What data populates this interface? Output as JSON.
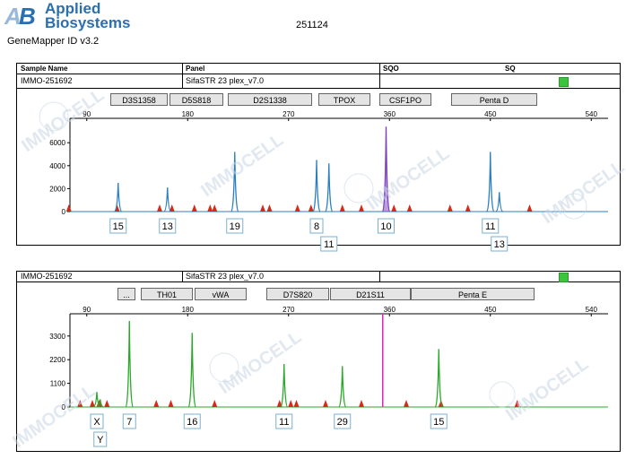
{
  "header": {
    "brand_line1": "Applied",
    "brand_line2": "Biosystems",
    "app_name": "GeneMapper ID v3.2",
    "run_id": "251124",
    "watermark": "IMMOCELL"
  },
  "table": {
    "col_sample": "Sample Name",
    "col_panel": "Panel",
    "col_sqo": "SQO",
    "col_sq": "SQ",
    "sample_name": "IMMO-251692",
    "panel": "SifaSTR 23 plex_v7.0"
  },
  "colors": {
    "blue_dye": "#2a7fc0",
    "green_dye": "#2aa82a",
    "purple_dye": "#7b3fc0",
    "magenta_dye": "#e020c0",
    "size_std": "#d42a1a",
    "status_ok": "#3cc43c"
  },
  "chart_data": [
    {
      "type": "line",
      "dye": "blue",
      "title": "",
      "x_ticks": [
        90,
        180,
        270,
        360,
        450,
        540
      ],
      "y_ticks": [
        0,
        2000,
        4000,
        6000
      ],
      "xlim": [
        75,
        555
      ],
      "ylim": [
        0,
        7500
      ],
      "markers": [
        "D3S1358",
        "D5S818",
        "D2S1338",
        "TPOX",
        "CSF1PO",
        "Penta D"
      ],
      "peaks": [
        {
          "x": 118,
          "y": 2500,
          "label": "15"
        },
        {
          "x": 162,
          "y": 2100,
          "label": "13"
        },
        {
          "x": 222,
          "y": 5200,
          "label": "19"
        },
        {
          "x": 295,
          "y": 4500,
          "label": "8"
        },
        {
          "x": 306,
          "y": 4200,
          "label": "11"
        },
        {
          "x": 357,
          "y": 7400,
          "label": "10",
          "pull_up": true
        },
        {
          "x": 450,
          "y": 5200,
          "label": "11"
        },
        {
          "x": 458,
          "y": 1700,
          "label": "13"
        }
      ],
      "size_standard_x": [
        74,
        117,
        155,
        166,
        186,
        200,
        204,
        247,
        253,
        278,
        290,
        318,
        335,
        364,
        378,
        414,
        430,
        485
      ]
    },
    {
      "type": "line",
      "dye": "green",
      "title": "",
      "x_ticks": [
        90,
        180,
        270,
        360,
        450,
        540
      ],
      "y_ticks": [
        0,
        1100,
        2200,
        3300
      ],
      "xlim": [
        75,
        555
      ],
      "ylim": [
        0,
        4000
      ],
      "markers": [
        "...",
        "TH01",
        "vWA",
        "D7S820",
        "D21S11",
        "Penta E"
      ],
      "peaks": [
        {
          "x": 99,
          "y": 700,
          "label": "X"
        },
        {
          "x": 102,
          "y": 350,
          "label": "Y"
        },
        {
          "x": 128,
          "y": 4000,
          "label": "7"
        },
        {
          "x": 184,
          "y": 3450,
          "label": "16"
        },
        {
          "x": 266,
          "y": 2000,
          "label": "11"
        },
        {
          "x": 318,
          "y": 1900,
          "label": "29"
        },
        {
          "x": 404,
          "y": 2700,
          "label": "15"
        }
      ],
      "magenta_spike_x": 354,
      "size_standard_x": [
        84,
        95,
        101,
        108,
        152,
        165,
        204,
        262,
        272,
        277,
        303,
        335,
        375,
        406,
        474
      ]
    }
  ]
}
